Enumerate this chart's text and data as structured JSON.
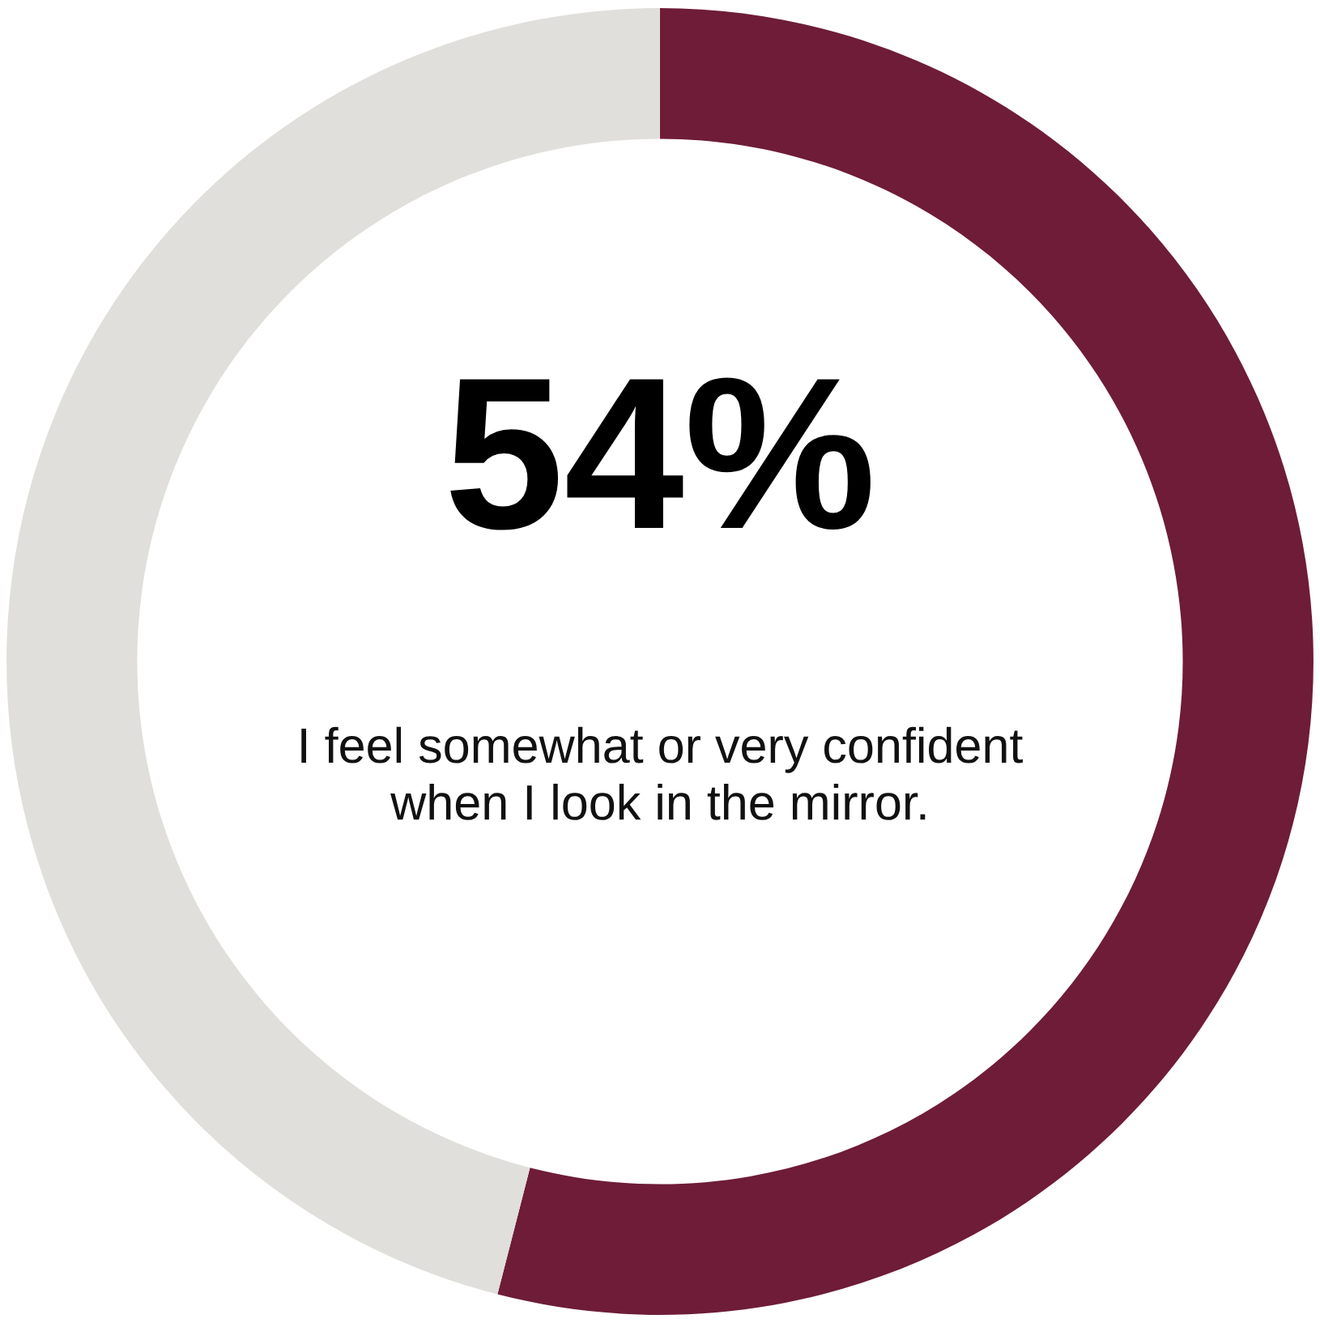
{
  "chart_data": {
    "type": "donut",
    "categories": [
      null,
      null
    ],
    "values": [
      54,
      46
    ],
    "colors": [
      "#6e1c38",
      "#e0dfdb"
    ],
    "value_labels": [
      "54%",
      null
    ],
    "annotations": [
      "I feel somewhat or very confident when I look in the mirror."
    ]
  }
}
